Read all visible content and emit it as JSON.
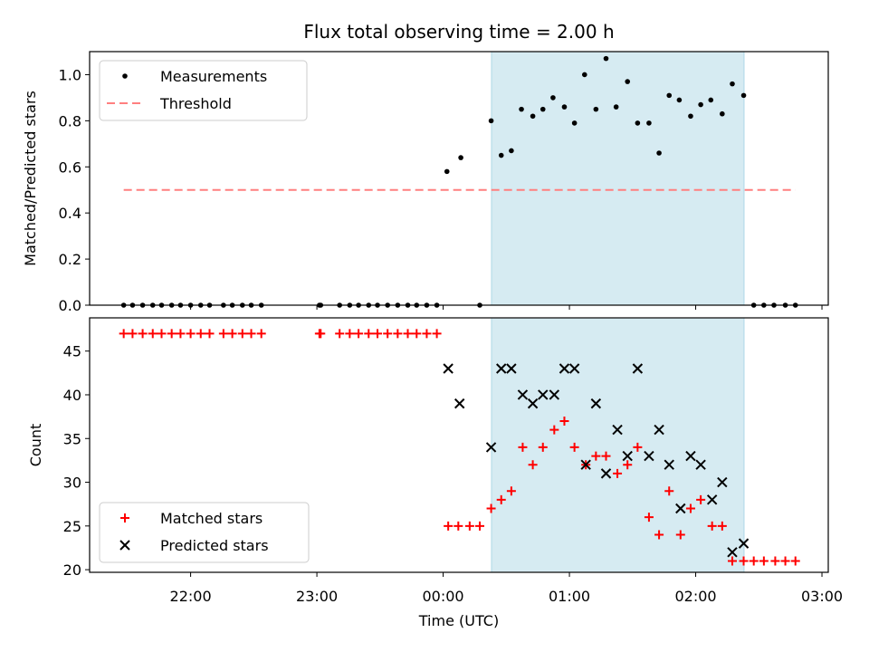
{
  "chart_data": {
    "title": "Flux total observing time = 2.00 h",
    "xlabel": "Time (UTC)",
    "x_unit": "hours since 00:00 UTC (negative = previous day)",
    "xlim": [
      -2.8,
      3.05
    ],
    "xticks": [
      {
        "value": -2,
        "label": "22:00"
      },
      {
        "value": -1,
        "label": "23:00"
      },
      {
        "value": 0,
        "label": "00:00"
      },
      {
        "value": 1,
        "label": "01:00"
      },
      {
        "value": 2,
        "label": "02:00"
      },
      {
        "value": 3,
        "label": "03:00"
      }
    ],
    "shaded_interval": {
      "x0": 0.383,
      "x1": 2.383,
      "color": "#add8e6"
    },
    "panels": [
      {
        "type": "scatter",
        "ylabel": "Matched/Predicted stars",
        "ylim": [
          0,
          1.1
        ],
        "yticks": [
          {
            "value": 0,
            "label": "0.0"
          },
          {
            "value": 0.2,
            "label": "0.2"
          },
          {
            "value": 0.4,
            "label": "0.4"
          },
          {
            "value": 0.6,
            "label": "0.6"
          },
          {
            "value": 0.8,
            "label": "0.8"
          },
          {
            "value": 1.0,
            "label": "1.0"
          }
        ],
        "legend": {
          "placement": "upper-left"
        },
        "series": [
          {
            "name": "Measurements",
            "marker": "dot",
            "color": "#000000",
            "x": [
              -2.53,
              -2.46,
              -2.38,
              -2.3,
              -2.23,
              -2.15,
              -2.08,
              -2.0,
              -1.92,
              -1.85,
              -1.74,
              -1.67,
              -1.59,
              -1.52,
              -1.44,
              -0.98,
              -0.97,
              -0.82,
              -0.74,
              -0.67,
              -0.59,
              -0.52,
              -0.44,
              -0.36,
              -0.28,
              -0.21,
              -0.13,
              -0.05,
              0.03,
              0.14,
              0.29,
              0.38,
              0.46,
              0.54,
              0.62,
              0.71,
              0.79,
              0.87,
              0.96,
              1.04,
              1.12,
              1.21,
              1.29,
              1.37,
              1.46,
              1.54,
              1.63,
              1.71,
              1.79,
              1.87,
              1.96,
              2.04,
              2.12,
              2.21,
              2.29,
              2.38,
              2.46,
              2.54,
              2.62,
              2.71,
              2.79
            ],
            "y": [
              0,
              0,
              0,
              0,
              0,
              0,
              0,
              0,
              0,
              0,
              0,
              0,
              0,
              0,
              0,
              0,
              0,
              0,
              0,
              0,
              0,
              0,
              0,
              0,
              0,
              0,
              0,
              0,
              0.58,
              0.64,
              0,
              0.8,
              0.65,
              0.67,
              0.85,
              0.82,
              0.85,
              0.9,
              0.86,
              0.79,
              1.0,
              0.85,
              1.07,
              0.86,
              0.97,
              0.79,
              0.79,
              0.66,
              0.91,
              0.89,
              0.82,
              0.87,
              0.89,
              0.83,
              0.96,
              0.91,
              0,
              0,
              0,
              0,
              0
            ]
          },
          {
            "name": "Threshold",
            "marker": "dashed-line",
            "color": "#ff7f7f",
            "x": [
              -2.53,
              2.79
            ],
            "y": [
              0.5,
              0.5
            ]
          }
        ]
      },
      {
        "type": "scatter",
        "ylabel": "Count",
        "ylim": [
          19.7,
          48.8
        ],
        "yticks": [
          {
            "value": 20,
            "label": "20"
          },
          {
            "value": 25,
            "label": "25"
          },
          {
            "value": 30,
            "label": "30"
          },
          {
            "value": 35,
            "label": "35"
          },
          {
            "value": 40,
            "label": "40"
          },
          {
            "value": 45,
            "label": "45"
          }
        ],
        "legend": {
          "placement": "lower-left"
        },
        "series": [
          {
            "name": "Matched stars",
            "marker": "plus",
            "color": "#ff0000",
            "x": [
              -2.53,
              -2.46,
              -2.38,
              -2.3,
              -2.23,
              -2.15,
              -2.08,
              -2.0,
              -1.92,
              -1.85,
              -1.74,
              -1.67,
              -1.59,
              -1.52,
              -1.44,
              -0.98,
              -0.97,
              -0.82,
              -0.74,
              -0.67,
              -0.59,
              -0.52,
              -0.44,
              -0.36,
              -0.28,
              -0.21,
              -0.13,
              -0.05,
              0.04,
              0.12,
              0.21,
              0.29,
              0.38,
              0.46,
              0.54,
              0.63,
              0.71,
              0.79,
              0.88,
              0.96,
              1.04,
              1.13,
              1.21,
              1.29,
              1.38,
              1.46,
              1.54,
              1.63,
              1.71,
              1.79,
              1.88,
              1.96,
              2.04,
              2.13,
              2.21,
              2.29,
              2.38,
              2.46,
              2.54,
              2.63,
              2.71,
              2.79
            ],
            "y": [
              47,
              47,
              47,
              47,
              47,
              47,
              47,
              47,
              47,
              47,
              47,
              47,
              47,
              47,
              47,
              47,
              47,
              47,
              47,
              47,
              47,
              47,
              47,
              47,
              47,
              47,
              47,
              47,
              25,
              25,
              25,
              25,
              27,
              28,
              29,
              34,
              32,
              34,
              36,
              37,
              34,
              32,
              33,
              33,
              31,
              32,
              34,
              26,
              24,
              29,
              24,
              27,
              28,
              25,
              25,
              21,
              21,
              21,
              21,
              21,
              21,
              21
            ]
          },
          {
            "name": "Predicted stars",
            "marker": "x",
            "color": "#000000",
            "x": [
              0.04,
              0.13,
              0.38,
              0.46,
              0.54,
              0.63,
              0.71,
              0.79,
              0.88,
              0.96,
              1.04,
              1.13,
              1.21,
              1.29,
              1.38,
              1.46,
              1.54,
              1.63,
              1.71,
              1.79,
              1.88,
              1.96,
              2.04,
              2.13,
              2.21,
              2.29,
              2.38
            ],
            "y": [
              43,
              39,
              34,
              43,
              43,
              40,
              39,
              40,
              40,
              43,
              43,
              32,
              39,
              31,
              36,
              33,
              43,
              33,
              36,
              32,
              27,
              33,
              32,
              28,
              30,
              22,
              23
            ]
          }
        ]
      }
    ]
  }
}
